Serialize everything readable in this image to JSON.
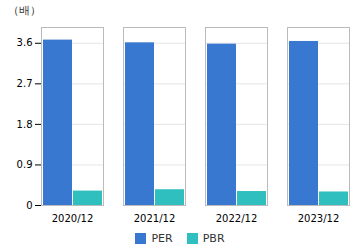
{
  "chart_data": {
    "type": "bar",
    "categories": [
      "2020/12",
      "2021/12",
      "2022/12",
      "2023/12"
    ],
    "series": [
      {
        "name": "PER",
        "color": "#3878d0",
        "values": [
          3.67,
          3.61,
          3.58,
          3.64
        ]
      },
      {
        "name": "PBR",
        "color": "#30bfbf",
        "values": [
          0.32,
          0.35,
          0.31,
          0.3
        ]
      }
    ],
    "y_label": "（배）",
    "ylim": [
      0,
      3.95
    ],
    "yticks": [
      0,
      0.9,
      1.8,
      2.7,
      3.6
    ],
    "grid": true,
    "legend": "bottom"
  }
}
